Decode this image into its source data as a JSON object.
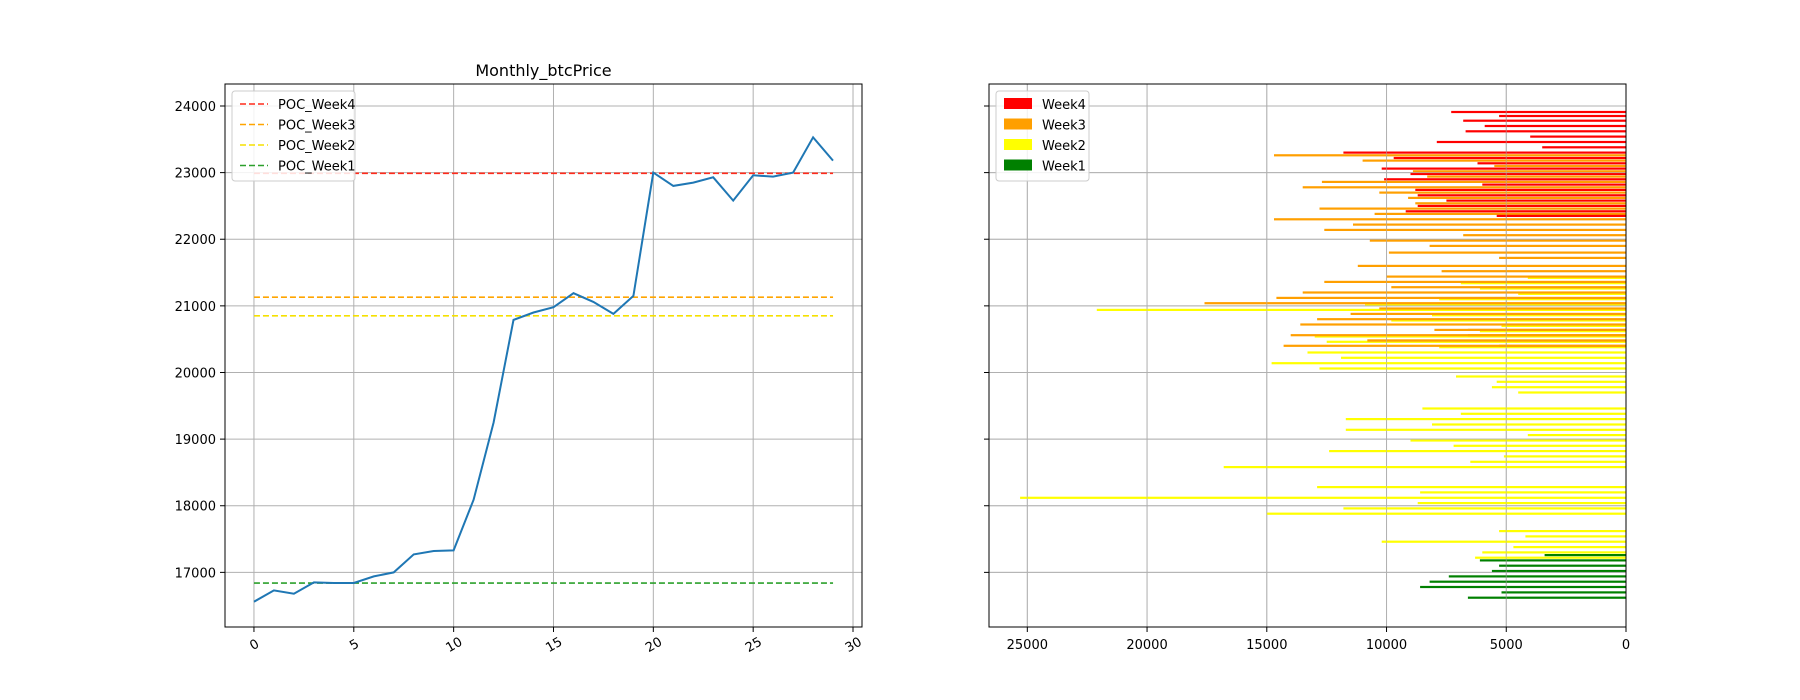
{
  "chart_data": [
    {
      "type": "line",
      "title": "Monthly_btcPrice",
      "xlabel": "",
      "ylabel": "",
      "xlim": [
        -1.45,
        30.45
      ],
      "ylim": [
        16180,
        24330
      ],
      "xticks": [
        0,
        5,
        10,
        15,
        20,
        25,
        30
      ],
      "yticks": [
        17000,
        18000,
        19000,
        20000,
        21000,
        22000,
        23000,
        24000
      ],
      "grid": true,
      "legend": "top-left",
      "x": [
        0,
        1,
        2,
        3,
        4,
        5,
        6,
        7,
        8,
        9,
        10,
        11,
        12,
        13,
        14,
        15,
        16,
        17,
        18,
        19,
        20,
        21,
        22,
        23,
        24,
        25,
        26,
        27,
        28,
        29
      ],
      "series": [
        {
          "color": "#1f77b4",
          "values": [
            16560,
            16730,
            16680,
            16850,
            16840,
            16840,
            16940,
            17000,
            17270,
            17320,
            17330,
            18090,
            19250,
            20790,
            20900,
            20980,
            21190,
            21060,
            20880,
            21150,
            23000,
            22800,
            22850,
            22930,
            22580,
            22960,
            22940,
            23000,
            23530,
            23180
          ]
        }
      ],
      "reference_lines": [
        {
          "name": "POC_Week4",
          "value": 22990,
          "color": "#ff2a1a",
          "style": "dashed"
        },
        {
          "name": "POC_Week3",
          "value": 21130,
          "color": "#ffa500",
          "style": "dashed"
        },
        {
          "name": "POC_Week2",
          "value": 20850,
          "color": "#f5e000",
          "style": "dashed"
        },
        {
          "name": "POC_Week1",
          "value": 16840,
          "color": "#2ca02c",
          "style": "dashed"
        }
      ]
    },
    {
      "type": "bar",
      "orientation": "horizontal",
      "xaxis_inverted": true,
      "xlim": [
        26600,
        0
      ],
      "ylim": [
        16180,
        24330
      ],
      "xticks": [
        25000,
        20000,
        15000,
        10000,
        5000,
        0
      ],
      "yticks": [
        17000,
        18000,
        19000,
        20000,
        21000,
        22000,
        23000,
        24000
      ],
      "show_ytick_labels": false,
      "grid": true,
      "legend": "top-left",
      "bar_height": 40,
      "series": [
        {
          "name": "Week4",
          "color": "#ff0000",
          "price": [
            23910,
            23850,
            23780,
            23700,
            23620,
            23540,
            23460,
            23380,
            23300,
            23220,
            23140,
            23060,
            22980,
            22900,
            22820,
            22740,
            22660,
            22580,
            22500,
            22420,
            22350
          ],
          "volume": [
            7300,
            5300,
            6800,
            5900,
            6700,
            4000,
            7900,
            3500,
            11800,
            9700,
            6200,
            10200,
            9000,
            10100,
            6000,
            8800,
            8700,
            7500,
            8700,
            9200,
            5400
          ]
        },
        {
          "name": "Week3",
          "color": "#ff9f00",
          "price": [
            23260,
            23180,
            23100,
            23020,
            22940,
            22860,
            22780,
            22700,
            22620,
            22540,
            22460,
            22380,
            22300,
            22220,
            22140,
            22060,
            21980,
            21900,
            21800,
            21720,
            21600,
            21520,
            21440,
            21360,
            21280,
            21200,
            21120,
            21040,
            20960,
            20880,
            20800,
            20720,
            20640,
            20560,
            20480,
            20400
          ],
          "volume": [
            14700,
            11000,
            5500,
            8900,
            8300,
            12700,
            13500,
            10300,
            9100,
            8800,
            12800,
            10500,
            14700,
            11400,
            12600,
            6800,
            10700,
            8200,
            9900,
            5300,
            11200,
            7700,
            10000,
            12600,
            9800,
            13500,
            14600,
            17600,
            10300,
            11500,
            12900,
            13600,
            6600,
            14000,
            10800,
            14300
          ],
          "trailing_bars": 4,
          "trailing_volume": [
            8000,
            6600,
            10800,
            5300
          ]
        },
        {
          "name": "Week2",
          "color": "#ffff00",
          "price": [
            21420,
            21340,
            21260,
            21180,
            21100,
            21020,
            20940,
            20860,
            20780,
            20700,
            20620,
            20540,
            20460,
            20380,
            20300,
            20220,
            20140,
            20060,
            19940,
            19860,
            19780,
            19700,
            19460,
            19380,
            19300,
            19220,
            19140,
            19060,
            18980,
            18900,
            18820,
            18740,
            18660,
            18580,
            18280,
            18200,
            18120,
            18040,
            17960,
            17880,
            17620,
            17540,
            17460,
            17380,
            17300,
            17220
          ],
          "volume": [
            4100,
            6900,
            6100,
            4500,
            7800,
            10900,
            22100,
            8100,
            9800,
            5200,
            6100,
            13000,
            12500,
            7800,
            13300,
            11900,
            14800,
            12800,
            7100,
            5400,
            5600,
            4500,
            8500,
            6900,
            11700,
            8100,
            11700,
            4100,
            9000,
            7200,
            12400,
            5100,
            6500,
            16800,
            12900,
            8600,
            25300,
            8700,
            11800,
            15000,
            5300,
            4200,
            10200,
            4700,
            6000,
            6300
          ]
        },
        {
          "name": "Week1",
          "color": "#008000",
          "price": [
            17260,
            17180,
            17100,
            17020,
            16940,
            16860,
            16780,
            16700,
            16620
          ],
          "volume": [
            3400,
            6100,
            5300,
            5600,
            7400,
            8200,
            8600,
            5200,
            6600
          ]
        }
      ]
    }
  ]
}
